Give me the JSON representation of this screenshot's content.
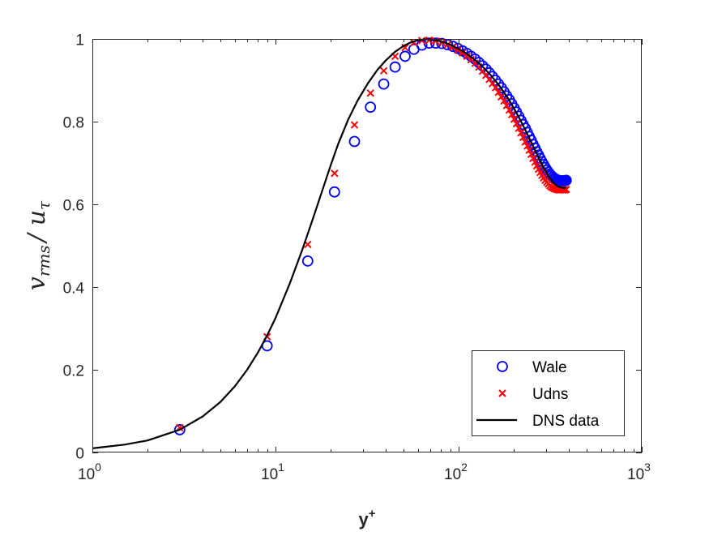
{
  "chart_data": {
    "type": "scatter",
    "title": "",
    "xlabel": "y",
    "xlabel_sup": "+",
    "ylabel_main": "v",
    "ylabel_main_sub": "rms",
    "ylabel_sep": "/",
    "ylabel_den": "u",
    "ylabel_den_sub": "τ",
    "xscale": "log",
    "xlim": [
      1,
      1000
    ],
    "ylim": [
      0,
      1
    ],
    "x_ticks": [
      {
        "base": "10",
        "exp": "0",
        "value": 1
      },
      {
        "base": "10",
        "exp": "1",
        "value": 10
      },
      {
        "base": "10",
        "exp": "2",
        "value": 100
      },
      {
        "base": "10",
        "exp": "3",
        "value": 1000
      }
    ],
    "y_ticks": [
      {
        "label": "0",
        "value": 0
      },
      {
        "label": "0.2",
        "value": 0.2
      },
      {
        "label": "0.4",
        "value": 0.4
      },
      {
        "label": "0.6",
        "value": 0.6
      },
      {
        "label": "0.8",
        "value": 0.8
      },
      {
        "label": "1",
        "value": 1
      }
    ],
    "grid": false,
    "legend_position": "bottom-right",
    "series": [
      {
        "name": "Wale",
        "marker": "circle",
        "color": "#0000ff",
        "x": [
          3,
          9,
          15,
          21,
          27,
          33,
          39,
          45,
          51,
          57,
          63,
          69,
          75,
          81,
          87,
          93,
          99,
          105,
          111,
          117,
          123,
          129,
          135,
          141,
          147,
          153,
          159,
          165,
          171,
          177,
          183,
          189,
          195,
          201,
          207,
          213,
          219,
          225,
          231,
          237,
          243,
          249,
          255,
          261,
          267,
          273,
          279,
          285,
          291,
          297,
          303,
          309,
          315,
          321,
          327,
          333,
          339,
          345,
          351,
          357,
          363,
          369,
          375,
          381,
          387
        ],
        "y": [
          0.055,
          0.258,
          0.463,
          0.63,
          0.752,
          0.835,
          0.891,
          0.932,
          0.958,
          0.975,
          0.985,
          0.99,
          0.99,
          0.989,
          0.986,
          0.982,
          0.977,
          0.971,
          0.965,
          0.958,
          0.951,
          0.943,
          0.935,
          0.927,
          0.918,
          0.909,
          0.9,
          0.891,
          0.882,
          0.872,
          0.862,
          0.853,
          0.843,
          0.833,
          0.823,
          0.813,
          0.803,
          0.793,
          0.784,
          0.774,
          0.764,
          0.755,
          0.745,
          0.736,
          0.727,
          0.719,
          0.711,
          0.703,
          0.696,
          0.689,
          0.683,
          0.678,
          0.673,
          0.669,
          0.666,
          0.663,
          0.661,
          0.659,
          0.658,
          0.657,
          0.657,
          0.657,
          0.657,
          0.657,
          0.658
        ]
      },
      {
        "name": "Udns",
        "marker": "x",
        "color": "#ff0000",
        "x": [
          3,
          9,
          15,
          21,
          27,
          33,
          39,
          45,
          51,
          57,
          63,
          69,
          75,
          81,
          87,
          93,
          99,
          105,
          111,
          117,
          123,
          129,
          135,
          141,
          147,
          153,
          159,
          165,
          171,
          177,
          183,
          189,
          195,
          201,
          207,
          213,
          219,
          225,
          231,
          237,
          243,
          249,
          255,
          261,
          267,
          273,
          279,
          285,
          291,
          297,
          303,
          309,
          315,
          321,
          327,
          333,
          339,
          345,
          351,
          357,
          363,
          369,
          375,
          381,
          387
        ],
        "y": [
          0.06,
          0.28,
          0.503,
          0.675,
          0.792,
          0.869,
          0.923,
          0.958,
          0.979,
          0.991,
          0.996,
          0.997,
          0.995,
          0.991,
          0.986,
          0.98,
          0.973,
          0.966,
          0.958,
          0.95,
          0.941,
          0.932,
          0.922,
          0.912,
          0.902,
          0.892,
          0.882,
          0.871,
          0.86,
          0.85,
          0.839,
          0.828,
          0.817,
          0.806,
          0.795,
          0.784,
          0.773,
          0.762,
          0.751,
          0.741,
          0.731,
          0.721,
          0.711,
          0.702,
          0.693,
          0.685,
          0.677,
          0.67,
          0.664,
          0.658,
          0.653,
          0.649,
          0.645,
          0.642,
          0.64,
          0.638,
          0.637,
          0.636,
          0.635,
          0.635,
          0.635,
          0.635,
          0.635,
          0.635,
          0.636
        ]
      },
      {
        "name": "DNS data",
        "marker": "line",
        "color": "#000000",
        "x": [
          1,
          1.5,
          2,
          3,
          4,
          5,
          6,
          7,
          8,
          9,
          10,
          12,
          14,
          16,
          18,
          20,
          22,
          25,
          28,
          32,
          36,
          40,
          45,
          50,
          55,
          60,
          65,
          70,
          75,
          80,
          90,
          100,
          110,
          120,
          130,
          140,
          150,
          160,
          170,
          180,
          190,
          200,
          210,
          220,
          230,
          240,
          250,
          260,
          270,
          280,
          290,
          300,
          310,
          320,
          330,
          340,
          350,
          360,
          370,
          380,
          385
        ],
        "y": [
          0.01,
          0.019,
          0.029,
          0.055,
          0.087,
          0.122,
          0.16,
          0.2,
          0.241,
          0.283,
          0.325,
          0.41,
          0.49,
          0.565,
          0.633,
          0.694,
          0.746,
          0.806,
          0.85,
          0.893,
          0.925,
          0.948,
          0.969,
          0.983,
          0.992,
          0.997,
          0.999,
          0.999,
          0.997,
          0.994,
          0.986,
          0.976,
          0.965,
          0.953,
          0.94,
          0.926,
          0.912,
          0.897,
          0.882,
          0.866,
          0.85,
          0.833,
          0.816,
          0.799,
          0.782,
          0.765,
          0.749,
          0.733,
          0.718,
          0.704,
          0.691,
          0.679,
          0.668,
          0.659,
          0.652,
          0.647,
          0.643,
          0.641,
          0.64,
          0.64,
          0.64
        ]
      }
    ]
  }
}
